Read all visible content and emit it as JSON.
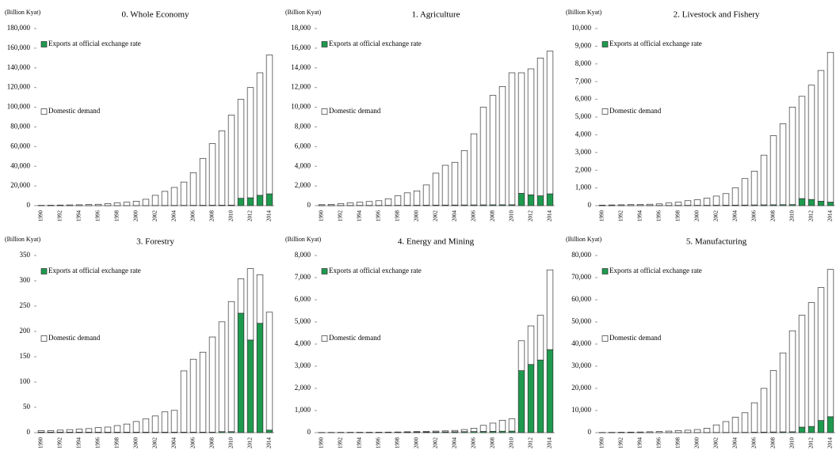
{
  "chart_data": [
    {
      "type": "bar",
      "stacked": true,
      "title": "0. Whole Economy",
      "y_label": "(Billion Kyat)",
      "legend": "upper left",
      "categories": [
        "1990",
        null,
        "1992",
        null,
        "1994",
        null,
        "1996",
        null,
        "1998",
        null,
        "2000",
        null,
        "2002",
        null,
        "2004",
        null,
        "2006",
        null,
        "2008",
        null,
        "2010",
        null,
        "2012",
        null,
        "2014"
      ],
      "series": [
        {
          "name": "Exports at official exchange rate",
          "color": "#1e9a4e",
          "values": [
            5,
            8,
            10,
            15,
            20,
            25,
            30,
            40,
            50,
            60,
            80,
            100,
            150,
            200,
            250,
            300,
            350,
            400,
            450,
            500,
            550,
            7500,
            8000,
            10500,
            12000
          ]
        },
        {
          "name": "Domestic demand",
          "color": "#ffffff",
          "values": [
            295,
            442,
            590,
            735,
            880,
            1075,
            1370,
            1960,
            2750,
            3440,
            4420,
            6400,
            10350,
            14300,
            18250,
            23700,
            33150,
            47600,
            62550,
            75500,
            91450,
            100500,
            112000,
            124500,
            141000
          ]
        }
      ],
      "ylim": [
        0,
        180000
      ],
      "yticks": [
        0,
        {
          "value": 20000,
          "label": "20,000"
        },
        {
          "value": 40000,
          "label": "40,000"
        },
        {
          "value": 60000,
          "label": "60,000"
        },
        {
          "value": 80000,
          "label": "80,000"
        },
        {
          "value": 100000,
          "label": "100,000"
        },
        {
          "value": 120000,
          "label": "120,000"
        },
        {
          "value": 140000,
          "label": "140,000"
        },
        {
          "value": 160000,
          "label": "160,000"
        },
        {
          "value": 180000,
          "label": "180,000"
        }
      ]
    },
    {
      "type": "bar",
      "stacked": true,
      "title": "1.  Agriculture",
      "y_label": "(Billion Kyat)",
      "legend": "upper left",
      "categories": [
        "1990",
        null,
        "1992",
        null,
        "1994",
        null,
        "1996",
        null,
        "1998",
        null,
        "2000",
        null,
        "2002",
        null,
        "2004",
        null,
        "2006",
        null,
        "2008",
        null,
        "2010",
        null,
        "2012",
        null,
        "2014"
      ],
      "series": [
        {
          "name": "Exports at official exchange rate",
          "color": "#1e9a4e",
          "values": [
            10,
            12,
            15,
            18,
            20,
            25,
            25,
            30,
            35,
            40,
            45,
            50,
            55,
            60,
            65,
            70,
            75,
            80,
            85,
            90,
            95,
            1250,
            1100,
            1000,
            1200
          ]
        },
        {
          "name": "Domestic demand",
          "color": "#ffffff",
          "values": [
            90,
            118,
            185,
            262,
            330,
            395,
            475,
            670,
            965,
            1260,
            1455,
            2050,
            3245,
            4040,
            4335,
            5530,
            7225,
            9920,
            11115,
            12010,
            13405,
            12250,
            12800,
            14000,
            14500
          ]
        }
      ],
      "ylim": [
        0,
        18000
      ],
      "yticks": [
        0,
        {
          "value": 2000,
          "label": "2,000"
        },
        {
          "value": 4000,
          "label": "4,000"
        },
        {
          "value": 6000,
          "label": "6,000"
        },
        {
          "value": 8000,
          "label": "8,000"
        },
        {
          "value": 10000,
          "label": "10,000"
        },
        {
          "value": 12000,
          "label": "12,000"
        },
        {
          "value": 14000,
          "label": "14,000"
        },
        {
          "value": 16000,
          "label": "16,000"
        },
        {
          "value": 18000,
          "label": "18,000"
        }
      ]
    },
    {
      "type": "bar",
      "stacked": true,
      "title": "2.  Livestock and Fishery",
      "y_label": "(Billion Kyat)",
      "legend": "upper left",
      "categories": [
        "1990",
        null,
        "1992",
        null,
        "1994",
        null,
        "1996",
        null,
        "1998",
        null,
        "2000",
        null,
        "2002",
        null,
        "2004",
        null,
        "2006",
        null,
        "2008",
        null,
        "2010",
        null,
        "2012",
        null,
        "2014"
      ],
      "series": [
        {
          "name": "Exports at official exchange rate",
          "color": "#1e9a4e",
          "values": [
            5,
            5,
            6,
            7,
            8,
            9,
            10,
            12,
            15,
            18,
            20,
            22,
            25,
            28,
            30,
            35,
            40,
            45,
            50,
            55,
            60,
            400,
            350,
            250,
            200
          ]
        },
        {
          "name": "Domestic demand",
          "color": "#ffffff",
          "values": [
            25,
            35,
            44,
            53,
            62,
            71,
            90,
            138,
            185,
            262,
            310,
            398,
            515,
            652,
            970,
            1495,
            1910,
            2805,
            3900,
            4565,
            5500,
            5770,
            6450,
            7380,
            8450
          ]
        }
      ],
      "ylim": [
        0,
        10000
      ],
      "yticks": [
        0,
        {
          "value": 1000,
          "label": "1,000"
        },
        {
          "value": 2000,
          "label": "2,000"
        },
        {
          "value": 3000,
          "label": "3,000"
        },
        {
          "value": 4000,
          "label": "4,000"
        },
        {
          "value": 5000,
          "label": "5,000"
        },
        {
          "value": 6000,
          "label": "6,000"
        },
        {
          "value": 7000,
          "label": "7,000"
        },
        {
          "value": 8000,
          "label": "8,000"
        },
        {
          "value": 9000,
          "label": "9,000"
        },
        {
          "value": 10000,
          "label": "10,000"
        }
      ]
    },
    {
      "type": "bar",
      "stacked": true,
      "title": "3.   Forestry",
      "y_label": "(Billion Kyat)",
      "legend": "upper left",
      "categories": [
        "1990",
        null,
        "1992",
        null,
        "1994",
        null,
        "1996",
        null,
        "1998",
        null,
        "2000",
        null,
        "2002",
        null,
        "2004",
        null,
        "2006",
        null,
        "2008",
        null,
        "2010",
        null,
        "2012",
        null,
        "2014"
      ],
      "series": [
        {
          "name": "Exports at official exchange rate",
          "color": "#1e9a4e",
          "values": [
            1,
            1,
            1,
            1,
            1,
            1,
            1,
            1,
            1,
            1,
            1,
            1,
            1,
            1,
            1,
            1,
            1,
            1,
            1,
            2,
            2,
            236,
            183,
            216,
            5
          ]
        },
        {
          "name": "Domestic demand",
          "color": "#ffffff",
          "values": [
            3,
            3,
            4,
            5,
            6,
            7,
            9,
            10,
            13,
            16,
            21,
            26,
            32,
            40,
            43,
            121,
            144,
            158,
            188,
            217,
            257,
            68,
            141,
            96,
            233
          ]
        }
      ],
      "ylim": [
        0,
        350
      ],
      "yticks": [
        0,
        50,
        100,
        150,
        200,
        250,
        300,
        350
      ]
    },
    {
      "type": "bar",
      "stacked": true,
      "title": "4. Energy and Mining",
      "y_label": "(Billion Kyat)",
      "legend": "upper left",
      "categories": [
        "1990",
        null,
        "1992",
        null,
        "1994",
        null,
        "1996",
        null,
        "1998",
        null,
        "2000",
        null,
        "2002",
        null,
        "2004",
        null,
        "2006",
        null,
        "2008",
        null,
        "2010",
        null,
        "2012",
        null,
        "2014"
      ],
      "series": [
        {
          "name": "Exports at official exchange rate",
          "color": "#1e9a4e",
          "values": [
            5,
            6,
            7,
            8,
            9,
            10,
            11,
            12,
            15,
            18,
            22,
            26,
            30,
            35,
            40,
            45,
            50,
            55,
            60,
            65,
            70,
            2800,
            3080,
            3280,
            3750
          ]
        },
        {
          "name": "Domestic demand",
          "color": "#ffffff",
          "values": [
            5,
            6,
            7,
            8,
            9,
            10,
            11,
            13,
            15,
            22,
            28,
            34,
            40,
            45,
            60,
            95,
            150,
            275,
            370,
            495,
            550,
            1350,
            1740,
            2020,
            3600
          ]
        }
      ],
      "ylim": [
        0,
        8000
      ],
      "yticks": [
        0,
        {
          "value": 1000,
          "label": "1,000"
        },
        {
          "value": 2000,
          "label": "2,000"
        },
        {
          "value": 3000,
          "label": "3,000"
        },
        {
          "value": 4000,
          "label": "4,000"
        },
        {
          "value": 5000,
          "label": "5,000"
        },
        {
          "value": 6000,
          "label": "6,000"
        },
        {
          "value": 7000,
          "label": "7,000"
        },
        {
          "value": 8000,
          "label": "8,000"
        }
      ]
    },
    {
      "type": "bar",
      "stacked": true,
      "title": "5.   Manufacturing",
      "y_label": "(Billion Kyat)",
      "legend": "upper left",
      "categories": [
        "1990",
        null,
        "1992",
        null,
        "1994",
        null,
        "1996",
        null,
        "1998",
        null,
        "2000",
        null,
        "2002",
        null,
        "2004",
        null,
        "2006",
        null,
        "2008",
        null,
        "2010",
        null,
        "2012",
        null,
        "2014"
      ],
      "series": [
        {
          "name": "Exports at official exchange rate",
          "color": "#1e9a4e",
          "values": [
            5,
            6,
            8,
            10,
            12,
            15,
            20,
            25,
            30,
            40,
            50,
            60,
            80,
            100,
            120,
            150,
            200,
            250,
            300,
            350,
            400,
            2500,
            2800,
            5500,
            7200
          ]
        },
        {
          "name": "Domestic demand",
          "color": "#ffffff",
          "values": [
            95,
            144,
            192,
            240,
            288,
            385,
            480,
            675,
            870,
            1060,
            1350,
            1940,
            3420,
            4900,
            6880,
            8850,
            13300,
            19750,
            27700,
            35650,
            45600,
            50500,
            55900,
            60000,
            66500
          ]
        }
      ],
      "ylim": [
        0,
        80000
      ],
      "yticks": [
        0,
        {
          "value": 10000,
          "label": "10,000"
        },
        {
          "value": 20000,
          "label": "20,000"
        },
        {
          "value": 30000,
          "label": "30,000"
        },
        {
          "value": 40000,
          "label": "40,000"
        },
        {
          "value": 50000,
          "label": "50,000"
        },
        {
          "value": 60000,
          "label": "60,000"
        },
        {
          "value": 70000,
          "label": "70,000"
        },
        {
          "value": 80000,
          "label": "80,000"
        }
      ]
    }
  ]
}
